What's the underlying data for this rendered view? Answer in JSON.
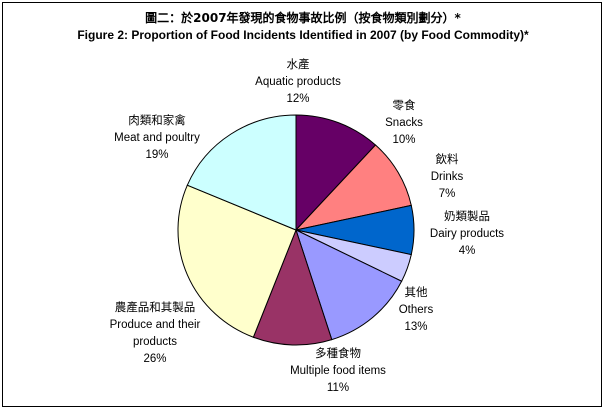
{
  "chart_data": {
    "type": "pie",
    "title": "圖二：於2007年發現的食物事故比例（按食物類別劃分）*",
    "subtitle": "Figure 2: Proportion of Food Incidents Identified in 2007 (by Food Commodity)*",
    "slices": [
      {
        "label_zh": "水產",
        "label_en": "Aquatic products",
        "value": 12,
        "value_label": "12%",
        "color": "#660066"
      },
      {
        "label_zh": "零食",
        "label_en": "Snacks",
        "value": 10,
        "value_label": "10%",
        "color": "#ff8080"
      },
      {
        "label_zh": "飲料",
        "label_en": "Drinks",
        "value": 7,
        "value_label": "7%",
        "color": "#0066cc"
      },
      {
        "label_zh": "奶類製品",
        "label_en": "Dairy products",
        "value": 4,
        "value_label": "4%",
        "color": "#ccccff"
      },
      {
        "label_zh": "其他",
        "label_en": "Others",
        "value": 13,
        "value_label": "13%",
        "color": "#9999ff"
      },
      {
        "label_zh": "多種食物",
        "label_en": "Multiple food items",
        "value": 11,
        "value_label": "11%",
        "color": "#993366"
      },
      {
        "label_zh": "農產品和其製品",
        "label_en": "Produce and their products",
        "value": 26,
        "value_label": "26%",
        "color": "#ffffcc"
      },
      {
        "label_zh": "肉類和家禽",
        "label_en": "Meat and poultry",
        "value": 19,
        "value_label": "19%",
        "color": "#ccffff"
      }
    ]
  }
}
